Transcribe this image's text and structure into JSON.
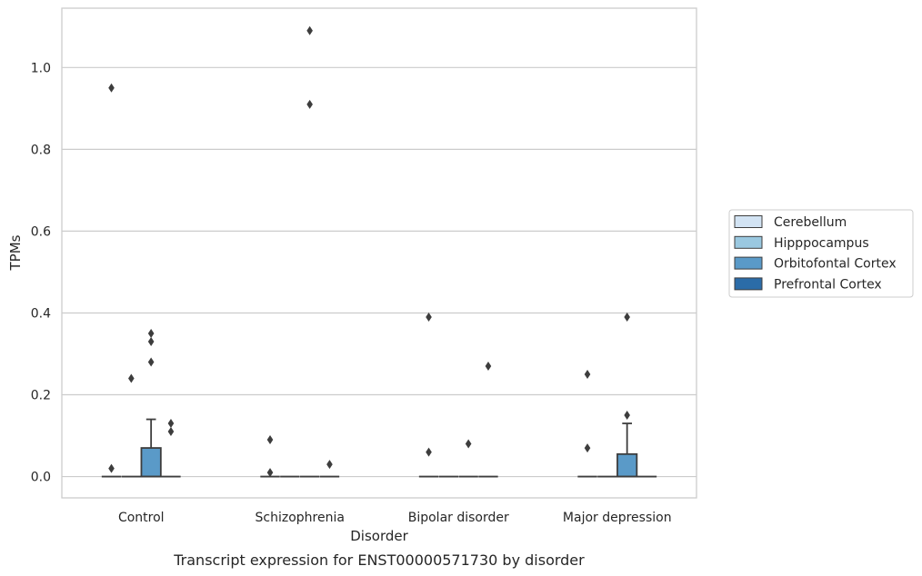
{
  "caption": "Transcript expression for ENST00000571730 by disorder",
  "chart_data": {
    "type": "box",
    "xlabel": "Disorder",
    "ylabel": "TPMs",
    "ylim": [
      -0.052,
      1.145
    ],
    "yticks": [
      0.0,
      0.2,
      0.4,
      0.6,
      0.8,
      1.0
    ],
    "ytick_labels": [
      "0.0",
      "0.2",
      "0.4",
      "0.6",
      "0.8",
      "1.0"
    ],
    "grid": "horizontal",
    "legend_position": "right",
    "categories": [
      "Control",
      "Schizophrenia",
      "Bipolar disorder",
      "Major depression"
    ],
    "series": [
      {
        "name": "Cerebellum",
        "color": "#d2e3f3",
        "boxes": [
          {
            "q1": 0,
            "median": 0,
            "q3": 0,
            "whisker_low": 0,
            "whisker_high": 0,
            "outliers": [
              0.95,
              0.02
            ]
          },
          {
            "q1": 0,
            "median": 0,
            "q3": 0,
            "whisker_low": 0,
            "whisker_high": 0,
            "outliers": [
              0.09,
              0.01
            ]
          },
          {
            "q1": 0,
            "median": 0,
            "q3": 0,
            "whisker_low": 0,
            "whisker_high": 0,
            "outliers": [
              0.39,
              0.06
            ]
          },
          {
            "q1": 0,
            "median": 0,
            "q3": 0,
            "whisker_low": 0,
            "whisker_high": 0,
            "outliers": [
              0.25,
              0.07
            ]
          }
        ]
      },
      {
        "name": "Hipppocampus",
        "color": "#9ac8e0",
        "boxes": [
          {
            "q1": 0,
            "median": 0,
            "q3": 0,
            "whisker_low": 0,
            "whisker_high": 0,
            "outliers": [
              0.24
            ]
          },
          {
            "q1": 0,
            "median": 0,
            "q3": 0,
            "whisker_low": 0,
            "whisker_high": 0,
            "outliers": []
          },
          {
            "q1": 0,
            "median": 0,
            "q3": 0,
            "whisker_low": 0,
            "whisker_high": 0,
            "outliers": []
          },
          {
            "q1": 0,
            "median": 0,
            "q3": 0,
            "whisker_low": 0,
            "whisker_high": 0,
            "outliers": []
          }
        ]
      },
      {
        "name": "Orbitofontal Cortex",
        "color": "#5a9ac8",
        "boxes": [
          {
            "q1": 0,
            "median": 0,
            "q3": 0.07,
            "whisker_low": 0,
            "whisker_high": 0.14,
            "outliers": [
              0.35,
              0.33,
              0.28
            ]
          },
          {
            "q1": 0,
            "median": 0,
            "q3": 0,
            "whisker_low": 0,
            "whisker_high": 0,
            "outliers": [
              1.09,
              0.91
            ]
          },
          {
            "q1": 0,
            "median": 0,
            "q3": 0,
            "whisker_low": 0,
            "whisker_high": 0,
            "outliers": [
              0.08
            ]
          },
          {
            "q1": 0,
            "median": 0,
            "q3": 0.055,
            "whisker_low": 0,
            "whisker_high": 0.13,
            "outliers": [
              0.39,
              0.15
            ]
          }
        ]
      },
      {
        "name": "Prefrontal Cortex",
        "color": "#2b6ca8",
        "boxes": [
          {
            "q1": 0,
            "median": 0,
            "q3": 0,
            "whisker_low": 0,
            "whisker_high": 0,
            "outliers": [
              0.13,
              0.11
            ]
          },
          {
            "q1": 0,
            "median": 0,
            "q3": 0,
            "whisker_low": 0,
            "whisker_high": 0,
            "outliers": [
              0.03
            ]
          },
          {
            "q1": 0,
            "median": 0,
            "q3": 0,
            "whisker_low": 0,
            "whisker_high": 0,
            "outliers": [
              0.27
            ]
          },
          {
            "q1": 0,
            "median": 0,
            "q3": 0,
            "whisker_low": 0,
            "whisker_high": 0,
            "outliers": []
          }
        ]
      }
    ]
  }
}
